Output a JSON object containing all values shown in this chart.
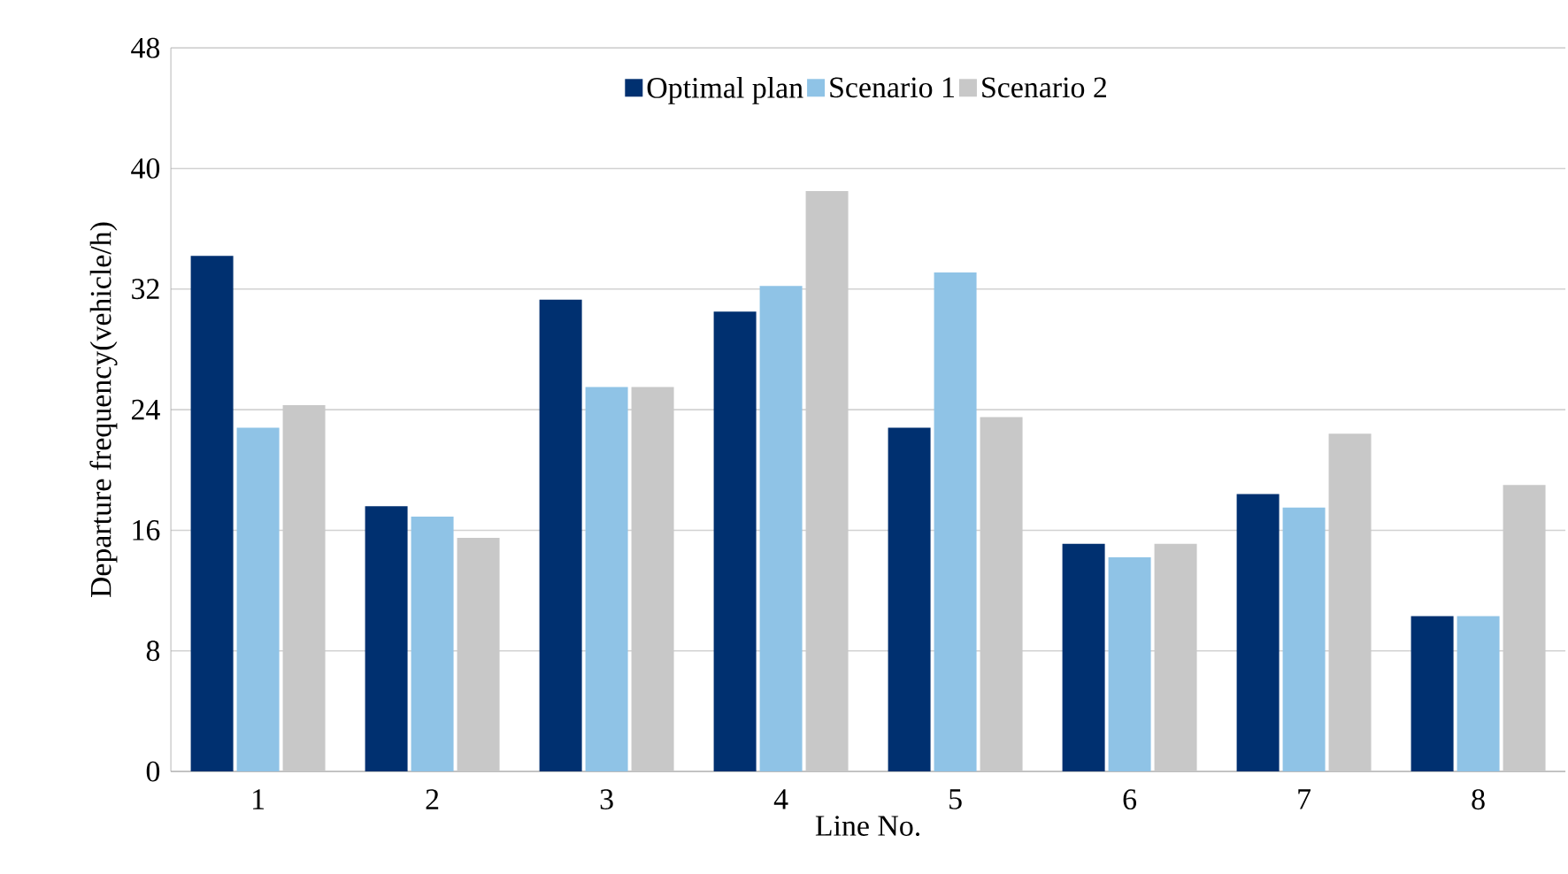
{
  "chart_data": {
    "type": "bar",
    "xlabel": "Line No.",
    "ylabel": "Departure frequency(vehicle/h)",
    "categories": [
      "1",
      "2",
      "3",
      "4",
      "5",
      "6",
      "7",
      "8"
    ],
    "series": [
      {
        "name": "Optimal plan",
        "color": "#003070",
        "values": [
          34.2,
          17.6,
          31.3,
          30.5,
          22.8,
          15.1,
          18.4,
          10.3
        ]
      },
      {
        "name": "Scenario 1",
        "color": "#8fc3e6",
        "values": [
          22.8,
          16.9,
          25.5,
          32.2,
          33.1,
          14.2,
          17.5,
          10.3
        ]
      },
      {
        "name": "Scenario 2",
        "color": "#c8c8c8",
        "values": [
          24.3,
          15.5,
          25.5,
          38.5,
          23.5,
          15.1,
          22.4,
          19.0
        ]
      }
    ],
    "ylim": [
      0,
      48
    ],
    "yticks": [
      0,
      8,
      16,
      24,
      32,
      40,
      48
    ],
    "grid": "y",
    "legend": "top"
  }
}
